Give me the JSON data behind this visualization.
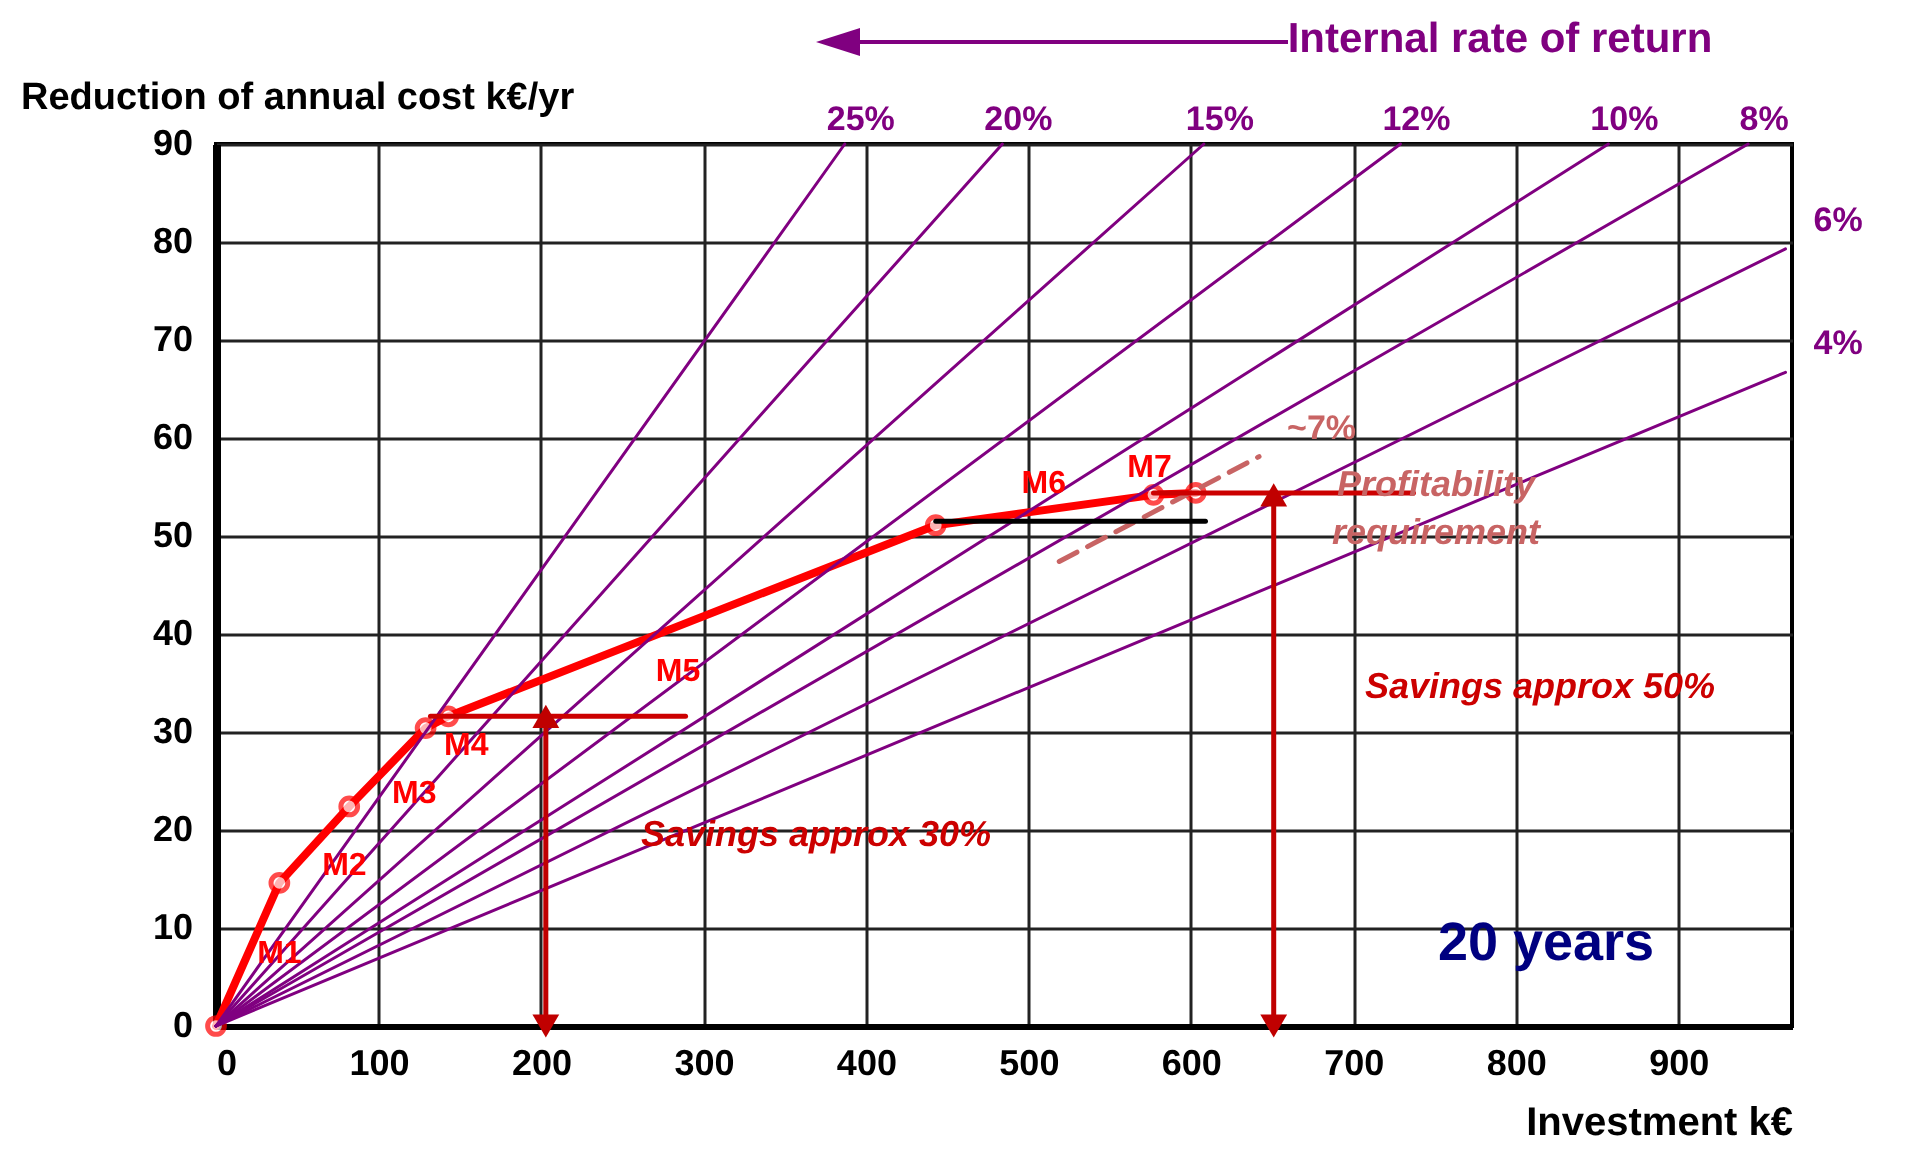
{
  "chart_data": {
    "type": "line",
    "xlabel": "Investment  k€",
    "ylabel": "Reduction  of  annual  cost  k€/yr",
    "xlim": [
      0,
      970
    ],
    "xticks": [
      0,
      100,
      200,
      300,
      400,
      500,
      600,
      700,
      800,
      900
    ],
    "ylim": [
      0,
      90
    ],
    "yticks": [
      0,
      10,
      20,
      30,
      40,
      50,
      60,
      70,
      80,
      90
    ],
    "grid": true,
    "series": [
      {
        "color": "#ff0000",
        "marker": "circle",
        "x": [
          0,
          39,
          82,
          129,
          143,
          443,
          577,
          603
        ],
        "values": [
          0,
          14.6,
          22.4,
          30.4,
          31.6,
          51.1,
          54.2,
          54.4
        ]
      },
      {
        "name": "25%",
        "color": "#800080",
        "x": [
          0,
          387
        ],
        "values": [
          0,
          90
        ]
      },
      {
        "name": "20%",
        "color": "#800080",
        "x": [
          0,
          484
        ],
        "values": [
          0,
          90
        ]
      },
      {
        "name": "15%",
        "color": "#800080",
        "x": [
          0,
          608
        ],
        "values": [
          0,
          90
        ]
      },
      {
        "name": "12%",
        "color": "#800080",
        "x": [
          0,
          729
        ],
        "values": [
          0,
          90
        ]
      },
      {
        "name": "10%",
        "color": "#800080",
        "x": [
          0,
          857
        ],
        "values": [
          0,
          90
        ]
      },
      {
        "name": "8%",
        "color": "#800080",
        "x": [
          0,
          943
        ],
        "values": [
          0,
          90
        ]
      },
      {
        "name": "6%",
        "color": "#800080",
        "x": [
          0,
          966
        ],
        "values": [
          0,
          79.3
        ]
      },
      {
        "name": "4%",
        "color": "#800080",
        "x": [
          0,
          966
        ],
        "values": [
          0,
          66.7
        ]
      },
      {
        "name": "~7%",
        "color": "#c86464",
        "line_style": "dashed",
        "x": [
          519,
          642
        ],
        "values": [
          47.4,
          58.1
        ]
      },
      {
        "color": "#000000",
        "x": [
          443,
          609
        ],
        "values": [
          51.5,
          51.5
        ]
      },
      {
        "color": "#cc0000",
        "x": [
          577,
          737
        ],
        "values": [
          54.4,
          54.4
        ]
      },
      {
        "color": "#cc0000",
        "x": [
          132,
          289
        ],
        "values": [
          31.6,
          31.6
        ]
      },
      {
        "color": "#c00000",
        "marker": "triangle",
        "x": [
          203,
          203
        ],
        "values": [
          31.6,
          0
        ]
      },
      {
        "color": "#c00000",
        "marker": "triangle",
        "x": [
          651,
          651
        ],
        "values": [
          54.2,
          0
        ]
      }
    ],
    "annotations": [
      "Internal rate of return",
      {
        "text": "M1",
        "x": 39,
        "y": 7.4
      },
      {
        "text": "M2",
        "x": 79,
        "y": 16.4
      },
      {
        "text": "M3",
        "x": 122,
        "y": 23.8
      },
      {
        "text": "M4",
        "x": 154,
        "y": 28.7
      },
      {
        "text": "M5",
        "x": 277,
        "y": 40.3
      },
      {
        "text": "M6",
        "x": 443,
        "y": 51.1
      },
      {
        "text": "M7",
        "x": 577,
        "y": 54.2
      },
      "Profitability requirement",
      "Savings approx 30%",
      "Savings approx 50%",
      "20 years"
    ]
  }
}
